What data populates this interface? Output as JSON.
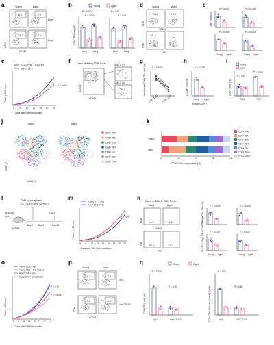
{
  "colors": {
    "young": "#2a3f9a",
    "aged": "#e84a73",
    "grey": "#999999"
  },
  "panels": [
    "a",
    "b",
    "c",
    "d",
    "e",
    "f",
    "g",
    "h",
    "i",
    "j",
    "k",
    "l",
    "m",
    "n",
    "o",
    "p",
    "q"
  ],
  "a": {
    "col_young": "Young",
    "col_aged": "Aged",
    "row1": "Liver",
    "row2": "Lung",
    "v_young_liver": "6.5",
    "v_aged_liver": "2.0",
    "v_young_lung": "11.2",
    "v_aged_lung": "4.6",
    "ylab": "CD69",
    "xlab": "CD103"
  },
  "b": {
    "legend_young": "Young",
    "legend_aged": "Aged",
    "p1": "P = 0.0002",
    "p2": "P = 0.0002",
    "p3": "P < 0.05",
    "p4": "P = 0.02",
    "ylab1": "CD8+ TRM cells (%)",
    "ylab2": "CD8+ TRM cells per g tissue (x10^5)",
    "cat1": "Liver",
    "cat2": "Lung"
  },
  "c": {
    "legend1": "Young CD8 → Rag1 KO",
    "legend2": "Aged CD8 →",
    "p": "P = 0.004",
    "ylab": "Tumor (×100 mm³)",
    "xlab": "Days after MB49 inoculation",
    "xticks": [
      "7",
      "9",
      "11",
      "13",
      "15",
      "17",
      "19"
    ]
  },
  "d": {
    "col_young": "Young",
    "col_aged": "Aged",
    "v1": "10.2",
    "v2": "3.9",
    "v3": "55.4",
    "v4": "39.1",
    "ylab1": "CD69",
    "xlab1": "CD103",
    "ylab2": "IFNγ",
    "xlab2": "TNF"
  },
  "e": {
    "p1": "P = 0.0101",
    "p2": "P = 0.0297",
    "p3": "P = 0.0453",
    "p4": "P = 0.0429",
    "ylab1": "CD8+ TRM (%)",
    "ylab2": "CD8+ TRM per g tumor",
    "ylab3": "IFNγ+TNF+ CD8+ TRM (%)",
    "ylab4": "IFNγ+TNF+ CD8+ TRM per g tumor",
    "cat1": "Young",
    "cat2": "Aged"
  },
  "f": {
    "label": "Tumor infiltrating CD8+ T cells",
    "v1": "69.8",
    "v2": "9.27",
    "v3": "1.16",
    "g1": "CD45.1 (Y)",
    "g2": "CD45.2 (A)",
    "ylab": "CD45.2",
    "xlab": "CD45.1",
    "ylab2": "CD69",
    "xlab2": "CD103"
  },
  "g": {
    "p": "P = 0.0005",
    "ylab": "Intratumoral CD8+ TRM cells (%)",
    "cat1": "CD45.1 (Y)",
    "cat2": "CD45.2 (A)"
  },
  "h": {
    "p": "P = 0.0335",
    "ylab": "CD103+ TRM (%)",
    "cat1": "Young",
    "cat2": "Aged",
    "xlab": "Human CD8+ T"
  },
  "i": {
    "legend_young": "Young",
    "legend_aged": "Aged",
    "p1": "P = 0.54",
    "p2": "P = 0.014",
    "ylab": "CD8+ T cells (%)",
    "cat1": "TCM",
    "cat2": "TRM"
  },
  "j": {
    "title_young": "Young",
    "title_aged": "Aged",
    "xlab": "UMAP_1",
    "ylab": "UMAP_2",
    "clusters": [
      {
        "label": "CD8+ TRM",
        "color": "#e84a5f"
      },
      {
        "label": "CD8+ TEM",
        "color": "#f2a37b"
      },
      {
        "label": "CD8+ TCM",
        "color": "#2b8a6e"
      },
      {
        "label": "CD8+ TEX",
        "color": "#1f5e9e"
      },
      {
        "label": "CD8+ pro",
        "color": "#4f8ed8"
      },
      {
        "label": "CD8+ ISG+",
        "color": "#9c6ad4"
      },
      {
        "label": "CD8+ HSP+",
        "color": "#c7d9e8"
      }
    ]
  },
  "k": {
    "rows": [
      "Young",
      "Aged"
    ],
    "xlab": "CD8+ T cell subpopulation (%)",
    "xticks": [
      "0",
      "25",
      "50",
      "75",
      "100"
    ],
    "legend": [
      "CD8+ TRM",
      "CD8+ TEM",
      "CD8+ TCM",
      "CD8+ TEX",
      "CD8+ pro",
      "CD8+ ISG+",
      "CD8+ HSP+"
    ],
    "colors": [
      "#e84a5f",
      "#f2a37b",
      "#2b8a6e",
      "#1f5e9e",
      "#4f8ed8",
      "#9c6ad4",
      "#c7d9e8"
    ],
    "values": {
      "Young": [
        22,
        17,
        12,
        18,
        9,
        12,
        10
      ],
      "Aged": [
        10,
        25,
        15,
        18,
        10,
        12,
        10
      ]
    }
  },
  "l": {
    "t1": "CD45.1+ young/aged",
    "t2": "OT-1 CD8+ T cells (10^6 i.v.)",
    "t3": "B16-OVA",
    "t4": "(s.c.)",
    "t5": "FACS",
    "d0": "Day 0",
    "d5": "Day 5",
    "d23": "Day 23",
    "mouse": "CD45.2"
  },
  "m": {
    "legend1": "Young OT-1 CD8",
    "legend2": "Aged OT-1 CD8",
    "p": "P = 0.04",
    "ylab": "Tumor (×100 mm³)",
    "xlab": "Days after B16-OVA inoculation",
    "xticks": [
      "6",
      "8",
      "10",
      "12",
      "14",
      "16",
      "18",
      "20",
      "22"
    ]
  },
  "n": {
    "title": "Gated on CD45.1+CD8+ T cells",
    "col_young": "Young",
    "col_aged": "Aged",
    "v1": "11.7",
    "v2": "5.87",
    "v3": "87.6",
    "v4": "70.0",
    "p1": "P = 0.0025",
    "p2": "P = 0.0075",
    "p3": "P = 0.0137",
    "p4": "P = 0.0137",
    "ylab1": "CD69",
    "xlab1": "CD103",
    "ylab2": "IFNγ",
    "xlab2": "TNF",
    "ylab3": "CD45.1+ CD8+ TRM (%)",
    "ylab4": "CD45.1+ CD8+ TRM per g tumor",
    "ylab5": "CD45.1+ IFNγ+TNF+ CD8+ TRM (%)",
    "ylab6": "CD45.1+ IFNγ+TNF+ CD8+ TRM per g tumor",
    "cat1": "Young",
    "cat2": "Aged"
  },
  "o": {
    "legend": [
      "Young CD8 + IgG",
      "Young CD8 + anti-CD103",
      "Aged CD8 + IgG",
      "Aged CD8 + anti-CD103"
    ],
    "p1": "P = 0.77",
    "p2": "P = 0.0005",
    "ylab": "Tumor (×100 mm³)",
    "xlab": "Days after MB49 inoculation",
    "xticks": [
      "7",
      "9",
      "11",
      "13",
      "15",
      "17",
      "19",
      "21"
    ]
  },
  "p": {
    "col_young": "Young",
    "col_aged": "Aged",
    "row1": "IgG",
    "row2": "Anti-CD103",
    "v1": "8.1",
    "v2": "4.4",
    "v3": "0.3",
    "v4": "0.3",
    "ylab": "CD69",
    "xlab": "CD103"
  },
  "q": {
    "legend_young": "Young",
    "legend_aged": "Aged",
    "p1": "P = 0.0002",
    "p2": "P = 0.95",
    "p3": "P < 0.01",
    "p4": "P = 0.58",
    "ylab1": "CD8+ TRM cells (%)",
    "ylab2": "CD8+ TRM cells per g tumor (x10^3)",
    "cat1": "IgG",
    "cat2": "Anti-CD103"
  }
}
